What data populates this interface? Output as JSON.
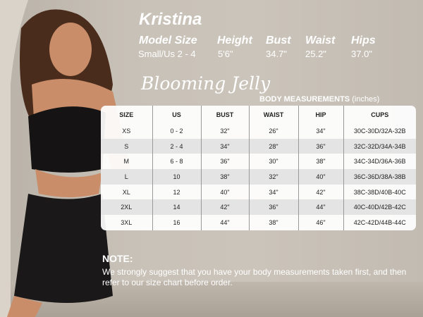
{
  "model": {
    "name": "Kristina",
    "labels": [
      "Model Size",
      "Height",
      "Bust",
      "Waist",
      "Hips"
    ],
    "values": [
      "Small/Us 2 - 4",
      "5'6\"",
      "34.7\"",
      "25.2\"",
      "37.0\""
    ]
  },
  "brand": "Blooming Jelly",
  "table_title": "BODY MEASUREMENTS",
  "table_unit": "(inches)",
  "table": {
    "headers": [
      "SIZE",
      "US",
      "BUST",
      "WAIST",
      "HIP",
      "CUPS"
    ],
    "rows": [
      [
        "XS",
        "0 - 2",
        "32\"",
        "26\"",
        "34\"",
        "30C-30D/32A-32B"
      ],
      [
        "S",
        "2 - 4",
        "34\"",
        "28\"",
        "36\"",
        "32C-32D/34A-34B"
      ],
      [
        "M",
        "6 - 8",
        "36\"",
        "30\"",
        "38\"",
        "34C-34D/36A-36B"
      ],
      [
        "L",
        "10",
        "38\"",
        "32\"",
        "40\"",
        "36C-36D/38A-38B"
      ],
      [
        "XL",
        "12",
        "40\"",
        "34\"",
        "42\"",
        "38C-38D/40B-40C"
      ],
      [
        "2XL",
        "14",
        "42\"",
        "36\"",
        "44\"",
        "40C-40D/42B-42C"
      ],
      [
        "3XL",
        "16",
        "44\"",
        "38\"",
        "46\"",
        "42C-42D/44B-44C"
      ]
    ]
  },
  "note": {
    "title": "NOTE:",
    "text": "We strongly suggest that you have your body measurements taken first, and then refer to our size chart before order."
  }
}
